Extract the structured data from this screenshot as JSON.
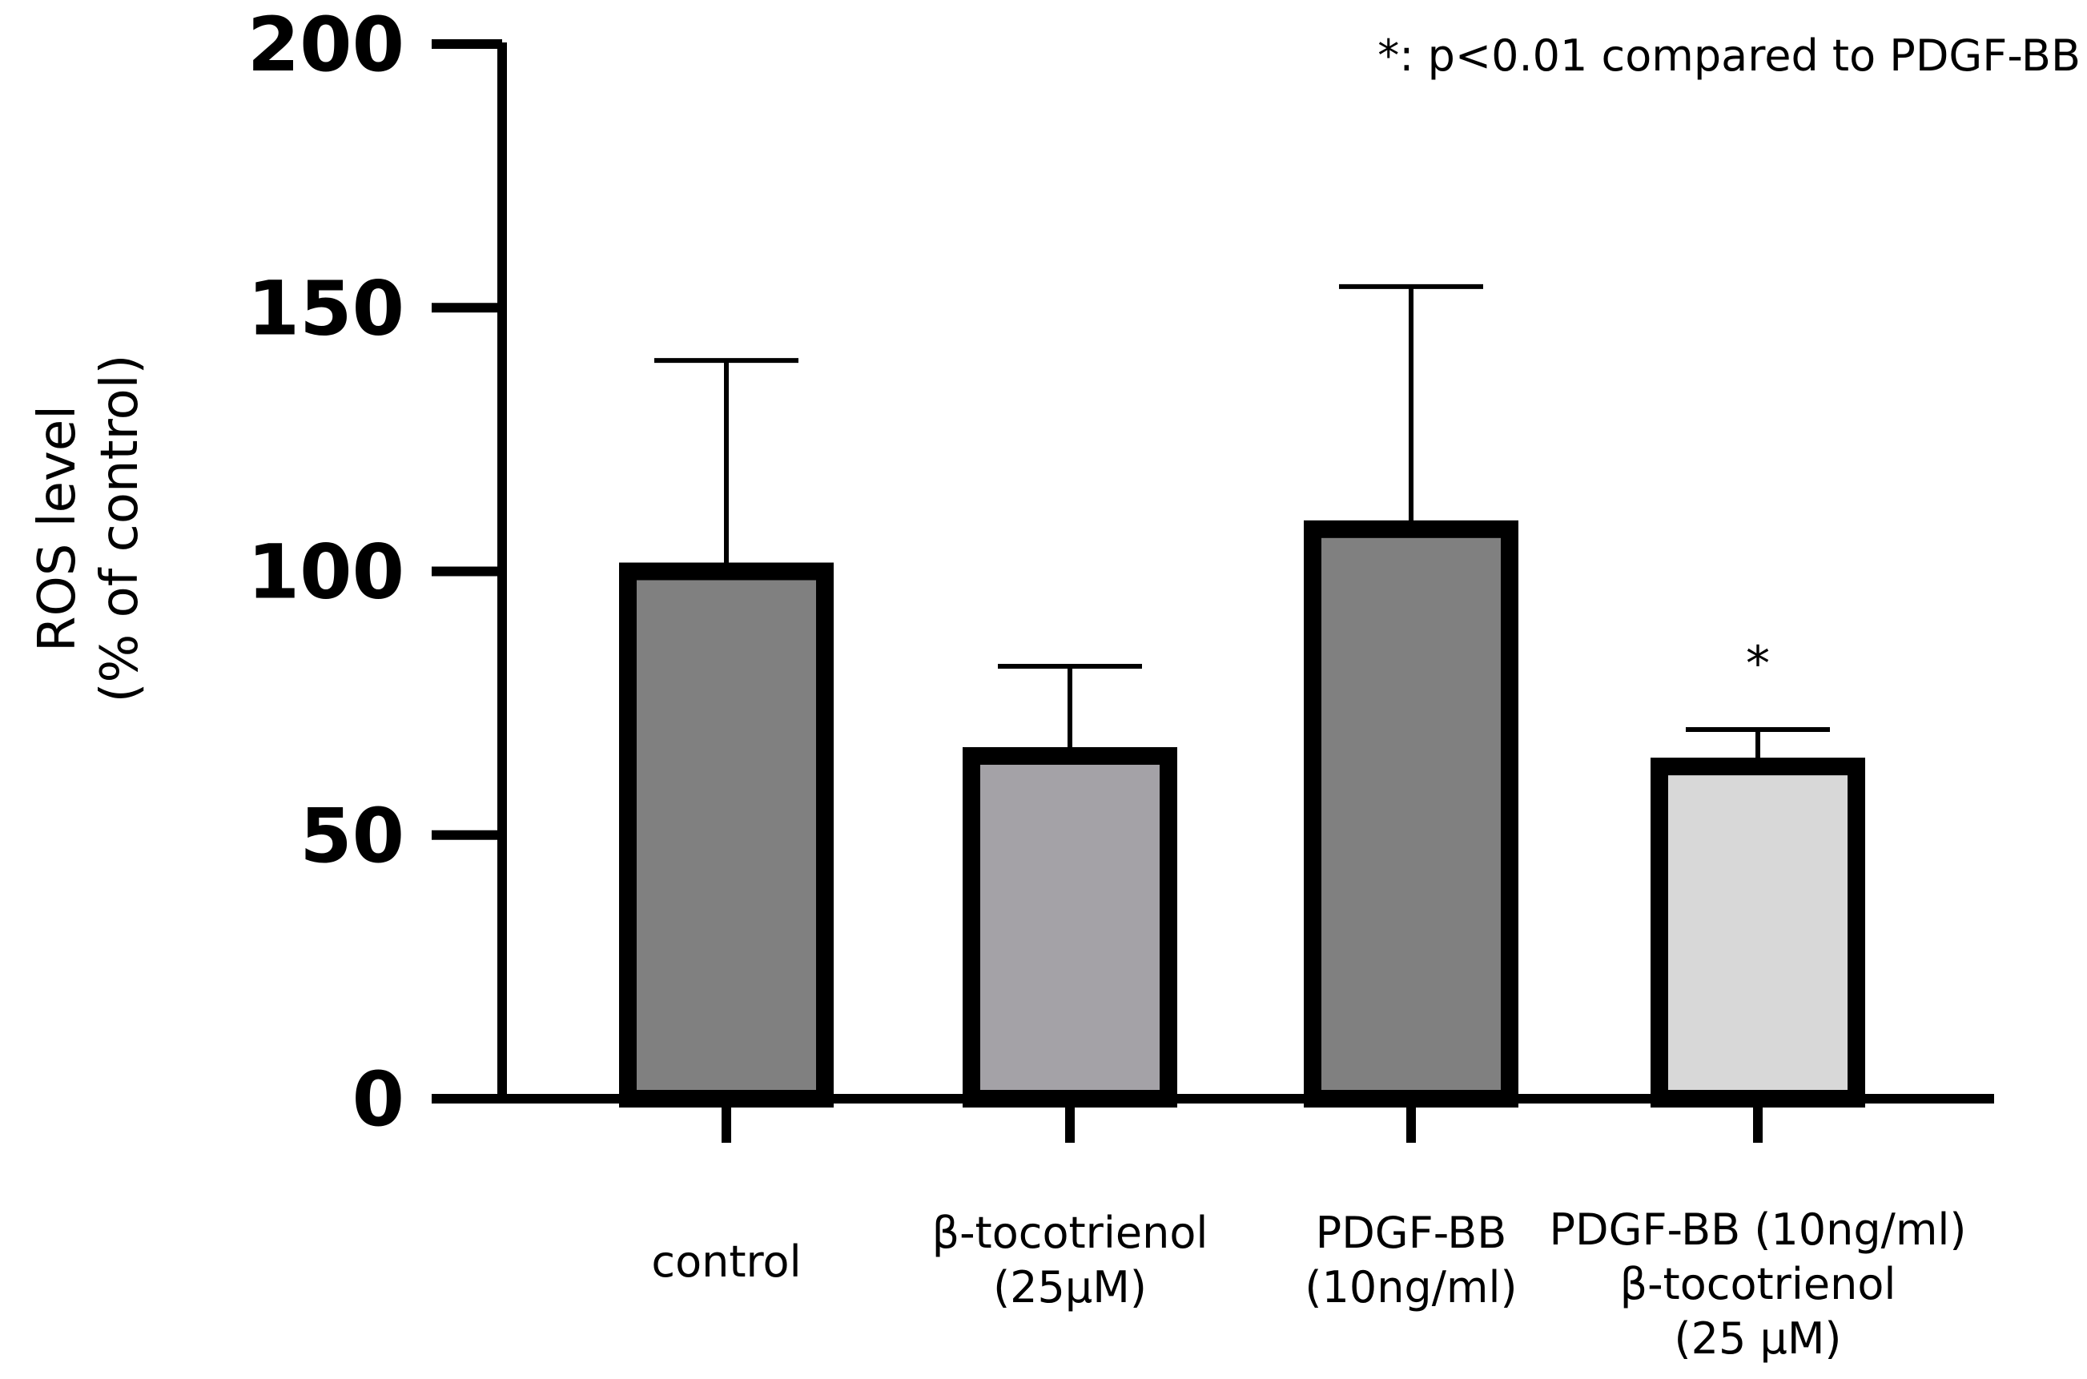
{
  "chart_data": {
    "type": "bar",
    "title": "",
    "xlabel": "",
    "ylabel_lines": [
      "ROS level",
      "(% of control)"
    ],
    "ylim": [
      0,
      200
    ],
    "yticks": [
      0,
      50,
      100,
      150,
      200
    ],
    "grid": false,
    "categories": [
      {
        "lines": [
          "control"
        ],
        "value": 100,
        "error": 40,
        "color": "#808080",
        "annotation": ""
      },
      {
        "lines": [
          "β-tocotrienol",
          "(25μM)"
        ],
        "value": 65,
        "error": 17,
        "color": "#a4a2a7",
        "annotation": ""
      },
      {
        "lines": [
          "PDGF-BB",
          "(10ng/ml)"
        ],
        "value": 108,
        "error": 46,
        "color": "#808080",
        "annotation": ""
      },
      {
        "lines": [
          "PDGF-BB (10ng/ml)",
          "β-tocotrienol",
          "(25 μM)"
        ],
        "value": 63,
        "error": 7,
        "color": "#d8d8d8",
        "annotation": "*"
      }
    ],
    "note": "*: p<0.01 compared to PDGF-BB",
    "bar_edge_color": "#000000"
  }
}
